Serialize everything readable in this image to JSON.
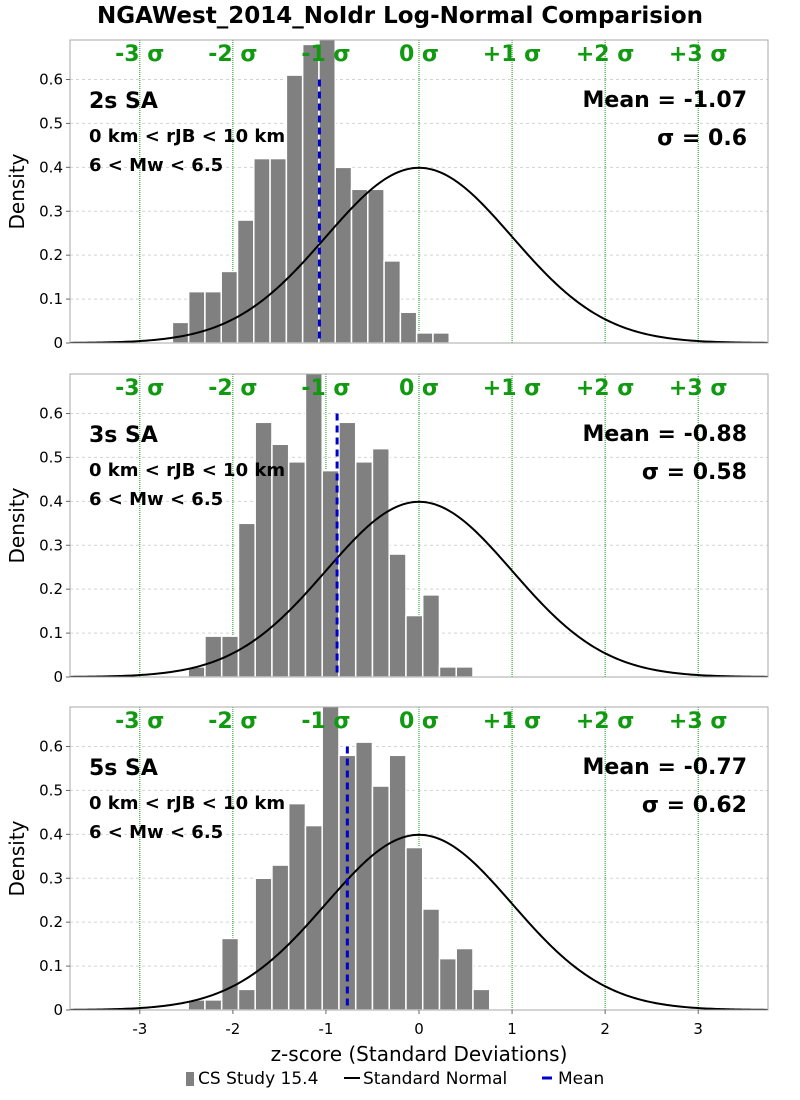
{
  "title": "NGAWest_2014_NoIdr Log-Normal Comparision",
  "xlabel": "z-score (Standard Deviations)",
  "ylabel": "Density",
  "legend": [
    {
      "label": "CS Study 15.4",
      "color": "#808080",
      "kind": "bar"
    },
    {
      "label": "Standard Normal",
      "color": "#000000",
      "kind": "line"
    },
    {
      "label": "Mean",
      "color": "#0000cc",
      "kind": "dash"
    }
  ],
  "colors": {
    "bars": "#808080",
    "normal": "#000000",
    "mean": "#0000cc",
    "sigma": "#119911",
    "grid": "#d3d3d3"
  },
  "sigma_labels": [
    "-3 σ",
    "-2 σ",
    "-1 σ",
    "0 σ",
    "+1 σ",
    "+2 σ",
    "+3 σ"
  ],
  "chart_data": [
    {
      "type": "bar",
      "panel_title": "2s SA",
      "subtitle_lines": [
        "0 km < rJB < 10 km",
        "6 < Mw < 6.5"
      ],
      "mean_label": "Mean = -1.07",
      "sigma_label": "σ = 0.6",
      "mean": -1.07,
      "xlim": [
        -3.75,
        3.75
      ],
      "ylim": [
        0,
        0.69
      ],
      "xticks": [
        -3,
        -2,
        -1,
        0,
        1,
        2,
        3
      ],
      "yticks": [
        0,
        0.1,
        0.2,
        0.3,
        0.4,
        0.5,
        0.6
      ],
      "bin_start": -2.65,
      "bin_width": 0.175,
      "values": [
        0.047,
        0.117,
        0.117,
        0.163,
        0.28,
        0.42,
        0.42,
        0.61,
        0.68,
        0.7,
        0.4,
        0.35,
        0.35,
        0.187,
        0.07,
        0.023,
        0.023
      ]
    },
    {
      "type": "bar",
      "panel_title": "3s SA",
      "subtitle_lines": [
        "0 km < rJB < 10 km",
        "6 < Mw < 6.5"
      ],
      "mean_label": "Mean = -0.88",
      "sigma_label": "σ = 0.58",
      "mean": -0.88,
      "xlim": [
        -3.75,
        3.75
      ],
      "ylim": [
        0,
        0.69
      ],
      "xticks": [
        -3,
        -2,
        -1,
        0,
        1,
        2,
        3
      ],
      "yticks": [
        0,
        0.1,
        0.2,
        0.3,
        0.4,
        0.5,
        0.6
      ],
      "bin_start": -2.48,
      "bin_width": 0.18,
      "values": [
        0.023,
        0.093,
        0.093,
        0.35,
        0.58,
        0.53,
        0.49,
        0.7,
        0.47,
        0.58,
        0.49,
        0.52,
        0.28,
        0.14,
        0.187,
        0.023,
        0.023
      ]
    },
    {
      "type": "bar",
      "panel_title": "5s SA",
      "subtitle_lines": [
        "0 km < rJB < 10 km",
        "6 < Mw < 6.5"
      ],
      "mean_label": "Mean = -0.77",
      "sigma_label": "σ = 0.62",
      "mean": -0.77,
      "xlim": [
        -3.75,
        3.75
      ],
      "ylim": [
        0,
        0.69
      ],
      "xticks": [
        -3,
        -2,
        -1,
        0,
        1,
        2,
        3
      ],
      "yticks": [
        0,
        0.1,
        0.2,
        0.3,
        0.4,
        0.5,
        0.6
      ],
      "bin_start": -2.48,
      "bin_width": 0.18,
      "values": [
        0.023,
        0.023,
        0.163,
        0.047,
        0.3,
        0.33,
        0.47,
        0.42,
        0.7,
        0.58,
        0.61,
        0.51,
        0.58,
        0.37,
        0.23,
        0.117,
        0.14,
        0.047
      ]
    }
  ]
}
